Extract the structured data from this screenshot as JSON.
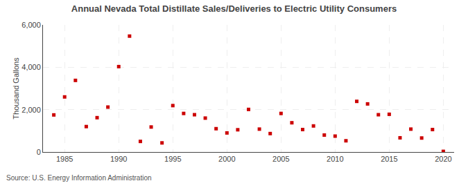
{
  "chart_data": {
    "type": "scatter",
    "title": "Annual Nevada Total Distillate Sales/Deliveries to Electric Utility Consumers",
    "y_label": "Thousand Gallons",
    "annotations": [
      "Source: U.S. Energy Information Administration"
    ],
    "x": [
      1984,
      1985,
      1986,
      1987,
      1988,
      1989,
      1990,
      1991,
      1992,
      1993,
      1994,
      1995,
      1996,
      1997,
      1998,
      1999,
      2000,
      2001,
      2002,
      2003,
      2004,
      2005,
      2006,
      2007,
      2008,
      2009,
      2010,
      2011,
      2012,
      2013,
      2014,
      2015,
      2016,
      2017,
      2018,
      2019,
      2020
    ],
    "values": [
      1750,
      2600,
      3380,
      1200,
      1620,
      2120,
      4030,
      5470,
      500,
      1180,
      430,
      2190,
      1820,
      1760,
      1600,
      1100,
      900,
      1050,
      2010,
      1080,
      870,
      1820,
      1380,
      1060,
      1230,
      800,
      750,
      530,
      2390,
      2270,
      1760,
      1780,
      670,
      1080,
      660,
      1060,
      30
    ],
    "color": "#cc0000",
    "marker": "square",
    "xlim": [
      1983,
      2021
    ],
    "xticks": [
      1985,
      1990,
      1995,
      2000,
      2005,
      2010,
      2015,
      2020
    ],
    "ylim": [
      0,
      6000
    ],
    "yticks": [
      0,
      {
        "value": 2000,
        "label": "2,000"
      },
      {
        "value": 4000,
        "label": "4,000"
      },
      {
        "value": 6000,
        "label": "6,000"
      }
    ],
    "grid": true
  }
}
